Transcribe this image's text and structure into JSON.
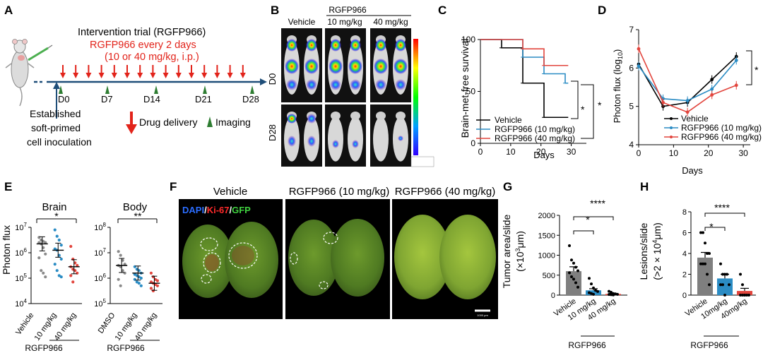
{
  "panels": {
    "A": {
      "letter": "A",
      "title": "Intervention trial (RGFP966)",
      "regimen": "RGFP966 every 2 days",
      "dose": "(10 or 40 mg/kg, i.p.)",
      "days": [
        "D0",
        "D7",
        "D14",
        "D21",
        "D28"
      ],
      "cells_note": [
        "Established",
        "soft-primed",
        "cell inoculation"
      ],
      "legend_drug": "Drug delivery",
      "legend_imaging": "Imaging",
      "red": "#e2231a",
      "green": "#2e7d32"
    },
    "B": {
      "letter": "B",
      "group_header": "RGFP966",
      "columns": [
        "Vehicle",
        "10 mg/kg",
        "40 mg/kg"
      ],
      "rows": [
        "D0",
        "D28"
      ]
    },
    "C": {
      "letter": "C",
      "ylabel": "Brain-met-free survival",
      "xlabel": "Days",
      "sig": "*",
      "sig2": "*",
      "legend": [
        "Vehicle",
        "RGFP966 (10 mg/kg)",
        "RGFP966 (40 mg/kg)"
      ]
    },
    "D": {
      "letter": "D",
      "ylabel": "Photon flux (log",
      "ylabel_sub": "10",
      "ylabel_end": ")",
      "xlabel": "Days",
      "sig": "*",
      "legend": [
        "Vehicle",
        "RGFP966 (10 mg/kg)",
        "RGFP966 (40 mg/kg)"
      ]
    },
    "E": {
      "letter": "E",
      "ylabel": "Photon flux",
      "brain_title": "Brain",
      "body_title": "Body",
      "brain_sig": "*",
      "body_sig": "**",
      "brain_x": [
        "Vehicle",
        "10 mg/kg",
        "40 mg/kg"
      ],
      "body_x": [
        "DMSO",
        "10 mg/kg",
        "40 mg/kg"
      ],
      "group": "RGFP966"
    },
    "F": {
      "letter": "F",
      "headers": [
        "Vehicle",
        "RGFP966 (10 mg/kg)",
        "RGFP966 (40 mg/kg)"
      ],
      "stain": [
        "DAPI",
        "/",
        "Ki-67",
        "/",
        "GFP"
      ],
      "scalebar": "1000 μm"
    },
    "G": {
      "letter": "G",
      "ylabel1": "Tumor area/slide",
      "ylabel2": "(×10",
      "ylabel2_sup": "3",
      "ylabel2_end": "μm)",
      "sig1": "*",
      "sig2": "****",
      "categories": [
        "Vehicle",
        "10 mg/kg",
        "40 mg/kg"
      ],
      "group": "RGFP966"
    },
    "H": {
      "letter": "H",
      "ylabel1": "Lesions/slide",
      "ylabel2": "(>2 × 10",
      "ylabel2_sup": "4",
      "ylabel2_end": "μm)",
      "sig1": "*",
      "sig2": "****",
      "categories": [
        "Vehicle",
        "10mg/kg",
        "40mg/kg"
      ],
      "group": "RGFP966"
    }
  },
  "colors": {
    "vehicle": "#000000",
    "rg10": "#2b8cc4",
    "rg40": "#e2453d",
    "bar_gray": "#7f7f7f",
    "dot_gray": "#8a8a8a"
  },
  "chart_data": [
    {
      "panel": "C",
      "type": "line",
      "step": true,
      "xlabel": "Days",
      "ylabel": "Brain-met-free survival",
      "xlim": [
        0,
        35
      ],
      "ylim": [
        0,
        100
      ],
      "xticks": [
        0,
        10,
        20,
        30
      ],
      "yticks": [
        0,
        50,
        100
      ],
      "series": [
        {
          "name": "Vehicle",
          "x": [
            0,
            7,
            14,
            21,
            28
          ],
          "y": [
            100,
            92,
            58,
            25,
            25
          ]
        },
        {
          "name": "RGFP966 (10 mg/kg)",
          "x": [
            0,
            14,
            21,
            28
          ],
          "y": [
            100,
            83,
            67,
            58
          ]
        },
        {
          "name": "RGFP966 (40 mg/kg)",
          "x": [
            0,
            14,
            21,
            28
          ],
          "y": [
            100,
            91,
            75,
            75
          ]
        }
      ]
    },
    {
      "panel": "D",
      "type": "line",
      "xlabel": "Days",
      "ylabel": "Photon flux (log10)",
      "xlim": [
        0,
        32
      ],
      "ylim": [
        4,
        7
      ],
      "xticks": [
        0,
        10,
        20,
        30
      ],
      "yticks": [
        4,
        5,
        6,
        7
      ],
      "series": [
        {
          "name": "Vehicle",
          "x": [
            0,
            7,
            14,
            21,
            28
          ],
          "y": [
            6.1,
            5.0,
            5.1,
            5.7,
            6.3
          ]
        },
        {
          "name": "RGFP966 (10 mg/kg)",
          "x": [
            0,
            7,
            14,
            21,
            28
          ],
          "y": [
            6.05,
            5.2,
            5.15,
            5.45,
            6.2
          ]
        },
        {
          "name": "RGFP966 (40 mg/kg)",
          "x": [
            0,
            7,
            14,
            21,
            28
          ],
          "y": [
            6.5,
            5.1,
            4.85,
            5.3,
            5.55
          ]
        }
      ]
    },
    {
      "panel": "E-Brain",
      "type": "scatter",
      "log_scale": true,
      "ylabel": "Photon flux",
      "ylim_exp": [
        4,
        7
      ],
      "categories": [
        "Vehicle",
        "10 mg/kg",
        "40 mg/kg"
      ],
      "means_log10": [
        6.35,
        6.1,
        5.45
      ],
      "points_log10": [
        [
          6.6,
          6.5,
          6.45,
          6.4,
          6.4,
          6.35,
          6.2,
          5.95,
          5.8,
          5.3,
          5.2,
          5.05
        ],
        [
          6.9,
          6.65,
          6.5,
          6.3,
          6.15,
          6.1,
          5.9,
          5.75,
          5.55,
          5.3,
          5.1,
          5.05
        ],
        [
          6.25,
          5.75,
          5.6,
          5.5,
          5.45,
          5.35,
          5.3,
          5.2,
          5.1,
          4.85
        ]
      ]
    },
    {
      "panel": "E-Body",
      "type": "scatter",
      "log_scale": true,
      "ylabel": "Photon flux",
      "ylim_exp": [
        5,
        8
      ],
      "categories": [
        "DMSO",
        "10 mg/kg",
        "40 mg/kg"
      ],
      "means_log10": [
        6.5,
        6.2,
        5.8
      ],
      "points_log10": [
        [
          7.05,
          6.9,
          6.7,
          6.55,
          6.5,
          6.45,
          6.3,
          6.2,
          5.95,
          5.7
        ],
        [
          6.45,
          6.35,
          6.3,
          6.2,
          6.15,
          6.1,
          6.05,
          6.0,
          5.95,
          5.85,
          5.8,
          5.7
        ],
        [
          6.2,
          6.05,
          5.95,
          5.9,
          5.85,
          5.8,
          5.75,
          5.7,
          5.6,
          5.5
        ]
      ]
    },
    {
      "panel": "G",
      "type": "bar",
      "ylabel": "Tumor area/slide (×10^3 μm)",
      "categories": [
        "Vehicle",
        "10 mg/kg",
        "40 mg/kg"
      ],
      "values": [
        600,
        120,
        30
      ],
      "errors": [
        110,
        40,
        12
      ],
      "ylim": [
        0,
        2000
      ],
      "yticks": [
        0,
        500,
        1000,
        1500,
        2000
      ],
      "points": [
        [
          1240,
          880,
          800,
          700,
          610,
          560,
          460,
          400,
          310,
          200
        ],
        [
          420,
          280,
          180,
          120,
          90,
          60,
          40,
          20
        ],
        [
          95,
          70,
          40,
          30,
          20,
          15,
          10,
          5
        ]
      ]
    },
    {
      "panel": "H",
      "type": "bar",
      "ylabel": "Lesions/slide (>2 × 10^4 μm)",
      "categories": [
        "Vehicle",
        "10mg/kg",
        "40mg/kg"
      ],
      "values": [
        3.6,
        1.6,
        0.4
      ],
      "errors": [
        0.5,
        0.4,
        0.25
      ],
      "ylim": [
        0,
        8
      ],
      "yticks": [
        0,
        2,
        4,
        6,
        8
      ],
      "points": [
        [
          6.0,
          6.0,
          5.0,
          4.0,
          4.0,
          3.0,
          3.0,
          3.0,
          2.0,
          1.0
        ],
        [
          3.0,
          2.0,
          2.0,
          2.0,
          1.0,
          1.0,
          1.0,
          0.0
        ],
        [
          2.0,
          1.0,
          0.0,
          0.0,
          0.0,
          0.0,
          0.0,
          0.0
        ]
      ]
    }
  ]
}
